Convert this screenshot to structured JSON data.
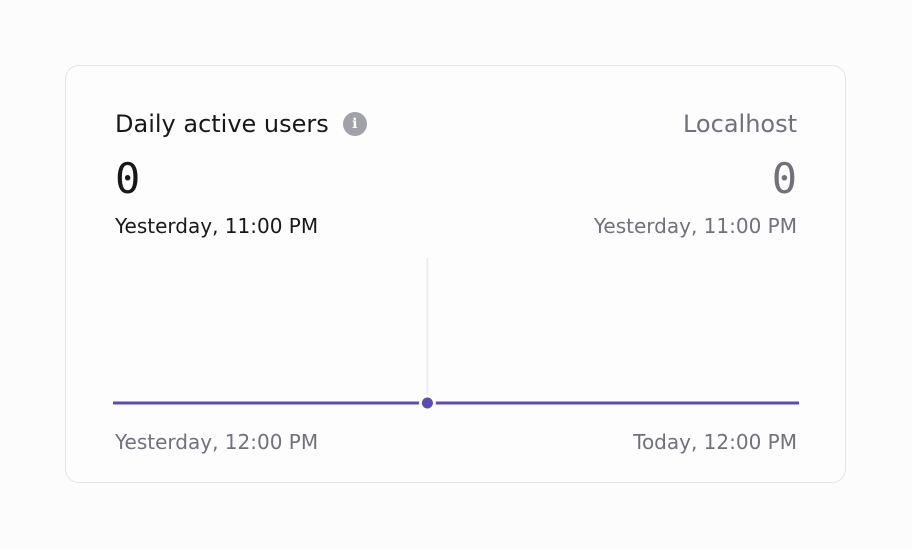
{
  "chart_data": {
    "type": "line",
    "title": "Daily active users",
    "series": [
      {
        "name": "Localhost",
        "x": [
          "Yesterday, 12:00 PM",
          "Yesterday, 11:00 PM",
          "Today, 12:00 PM"
        ],
        "values": [
          0,
          0,
          0
        ]
      }
    ],
    "xticks": [
      "Yesterday, 12:00 PM",
      "Today, 12:00 PM"
    ],
    "hover": {
      "x": "Yesterday, 11:00 PM",
      "value": "0",
      "series": "Localhost",
      "value_display": "0"
    },
    "grid": false,
    "line_color": "#5b4bb7"
  }
}
